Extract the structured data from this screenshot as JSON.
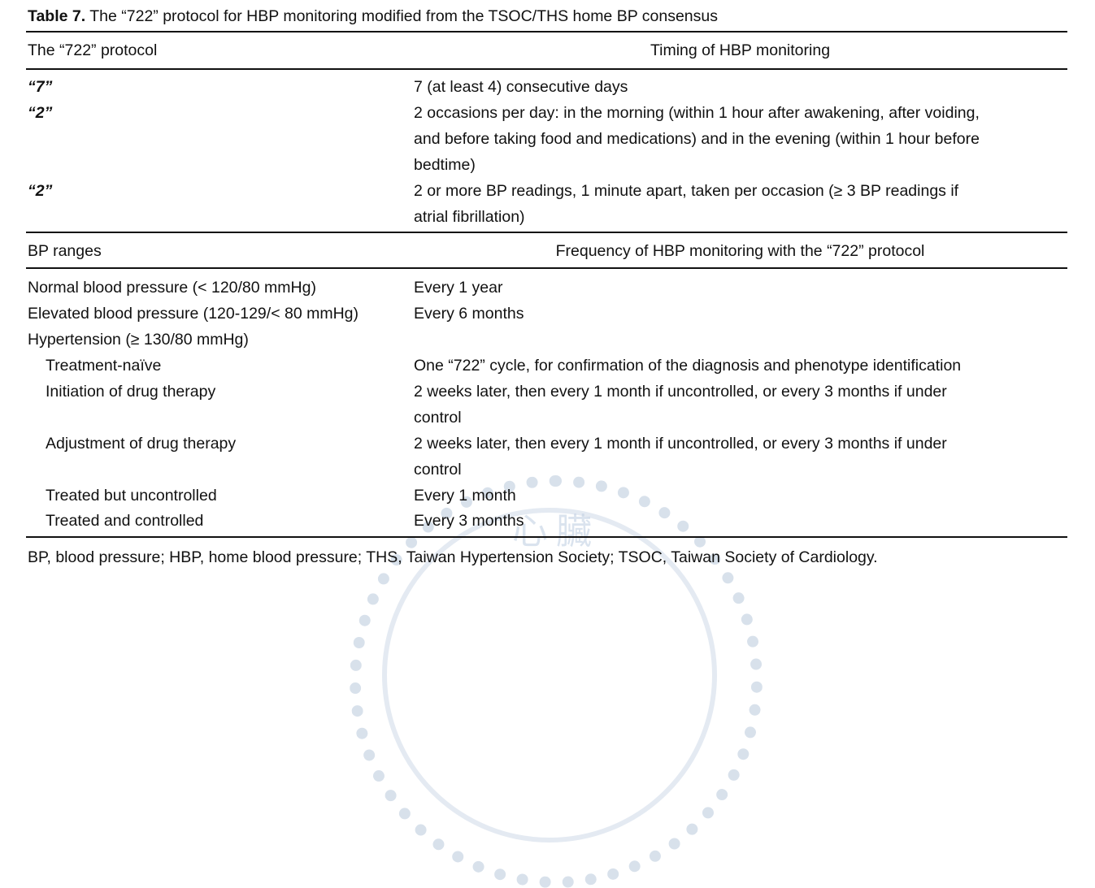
{
  "title": {
    "label": "Table 7.",
    "text": " The “722” protocol for HBP monitoring modified from the TSOC/THS home BP consensus"
  },
  "section1": {
    "header_left": "The “722” protocol",
    "header_right": "Timing of HBP monitoring",
    "rows": [
      {
        "label": "“7”",
        "lines": [
          "7 (at least 4) consecutive days"
        ]
      },
      {
        "label": "“2”",
        "lines": [
          "2 occasions per day: in the morning (within 1 hour after awakening, after voiding,",
          "and before taking food and medications) and in the evening (within 1 hour before",
          "bedtime)"
        ]
      },
      {
        "label": "“2”",
        "lines": [
          "2 or more BP readings, 1 minute apart, taken per occasion (≥ 3 BP readings if",
          "atrial fibrillation)"
        ]
      }
    ]
  },
  "section2": {
    "header_left": "BP ranges",
    "header_right": "Frequency of HBP monitoring with the “722” protocol",
    "rows": [
      {
        "label": "Normal blood pressure (< 120/80 mmHg)",
        "lines": [
          "Every 1 year"
        ]
      },
      {
        "label": "Elevated blood pressure (120-129/< 80 mmHg)",
        "lines": [
          "Every 6 months"
        ]
      },
      {
        "label": "Hypertension (≥ 130/80 mmHg)",
        "lines": []
      },
      {
        "label": "Treatment-naïve",
        "lines": [
          "One “722” cycle, for confirmation of the diagnosis and phenotype identification"
        ]
      },
      {
        "label": "Initiation of drug therapy",
        "lines": [
          "2 weeks later, then every 1 month if uncontrolled, or every 3 months if under",
          "control"
        ]
      },
      {
        "label": "Adjustment of drug therapy",
        "lines": [
          "2 weeks later, then every 1 month if uncontrolled, or every 3 months if under",
          "control"
        ]
      },
      {
        "label": "Treated but uncontrolled",
        "lines": [
          "Every 1 month"
        ]
      },
      {
        "label": "Treated and controlled",
        "lines": [
          "Every 3 months"
        ]
      }
    ]
  },
  "footnote": "BP, blood pressure; HBP, home blood pressure; THS, Taiwan Hypertension Society; TSOC, Taiwan Society of Cardiology.",
  "watermark": "心臟"
}
